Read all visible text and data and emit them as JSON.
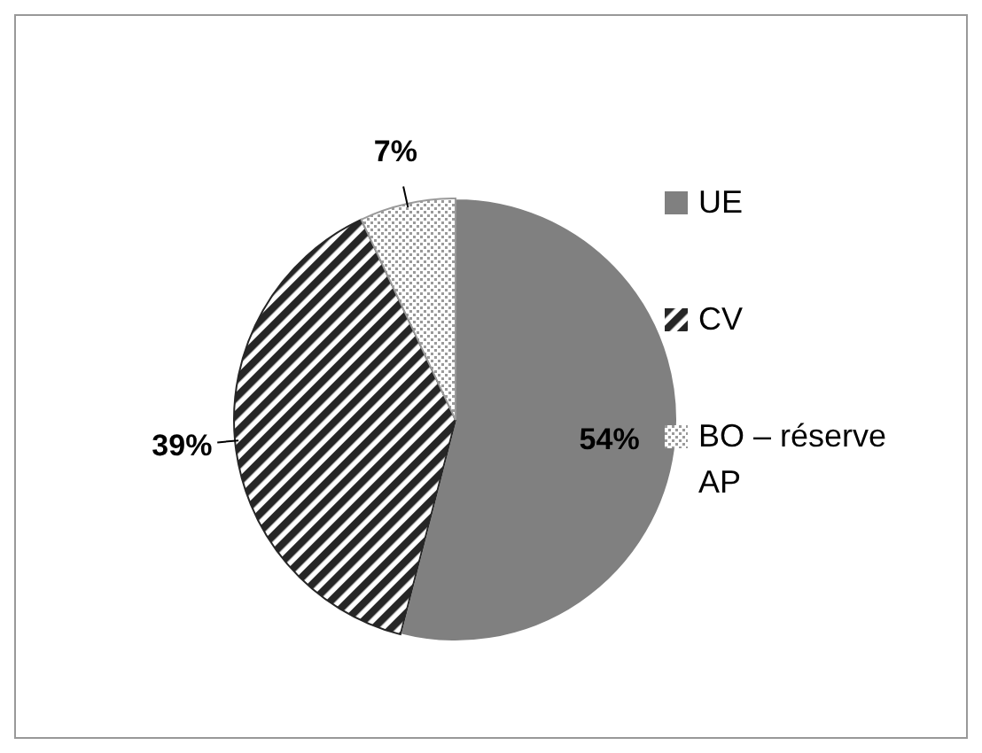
{
  "chart_data": {
    "type": "pie",
    "categories": [
      "UE",
      "CV",
      "BO – réserve AP"
    ],
    "values": [
      54,
      39,
      7
    ],
    "colors": [
      "#808080",
      "#262626",
      "#9a9a9a"
    ],
    "value_labels": [
      "54%",
      "39%",
      "7%"
    ],
    "legend": "right"
  }
}
